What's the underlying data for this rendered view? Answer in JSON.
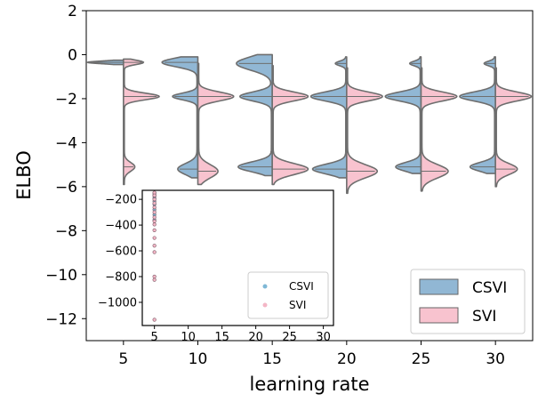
{
  "chart_data": [
    {
      "type": "violin",
      "xlabel": "learning rate",
      "ylabel": "ELBO",
      "categories": [
        "5",
        "10",
        "15",
        "20",
        "25",
        "30"
      ],
      "ylim": [
        -13,
        2
      ],
      "yticks": [
        2,
        0,
        -2,
        -4,
        -6,
        -8,
        -10,
        -12
      ],
      "yticklabels": [
        "2",
        "0",
        "−2",
        "−4",
        "−6",
        "−8",
        "−10",
        "−12"
      ],
      "split": true,
      "grid": false,
      "legend_position": "bottom-right",
      "series": [
        {
          "name": "CSVI",
          "color": "#91b7d4",
          "distributions": [
            {
              "modes": [
                {
                  "center": -0.35,
                  "spread": 0.06,
                  "weight": 1.0
                }
              ],
              "min": -0.45,
              "max": -0.25
            },
            {
              "modes": [
                {
                  "center": -0.35,
                  "spread": 0.2,
                  "weight": 1.0
                },
                {
                  "center": -1.9,
                  "spread": 0.15,
                  "weight": 0.7
                },
                {
                  "center": -5.2,
                  "spread": 0.25,
                  "weight": 0.55
                }
              ],
              "min": -5.6,
              "max": -0.1
            },
            {
              "modes": [
                {
                  "center": -0.4,
                  "spread": 0.3,
                  "weight": 1.0
                },
                {
                  "center": -1.9,
                  "spread": 0.2,
                  "weight": 0.9
                },
                {
                  "center": -5.1,
                  "spread": 0.22,
                  "weight": 0.95
                }
              ],
              "min": -5.5,
              "max": 0.0
            },
            {
              "modes": [
                {
                  "center": -0.4,
                  "spread": 0.1,
                  "weight": 0.3
                },
                {
                  "center": -1.9,
                  "spread": 0.2,
                  "weight": 1.0
                },
                {
                  "center": -5.2,
                  "spread": 0.22,
                  "weight": 0.95
                }
              ],
              "min": -5.6,
              "max": -0.1
            },
            {
              "modes": [
                {
                  "center": -0.4,
                  "spread": 0.1,
                  "weight": 0.3
                },
                {
                  "center": -1.9,
                  "spread": 0.2,
                  "weight": 1.0
                },
                {
                  "center": -5.1,
                  "spread": 0.2,
                  "weight": 0.7
                }
              ],
              "min": -5.4,
              "max": -0.1
            },
            {
              "modes": [
                {
                  "center": -0.4,
                  "spread": 0.1,
                  "weight": 0.3
                },
                {
                  "center": -1.9,
                  "spread": 0.2,
                  "weight": 1.0
                },
                {
                  "center": -5.1,
                  "spread": 0.2,
                  "weight": 0.7
                }
              ],
              "min": -5.4,
              "max": -0.1
            }
          ]
        },
        {
          "name": "SVI",
          "color": "#f8c3cf",
          "distributions": [
            {
              "modes": [
                {
                  "center": -0.35,
                  "spread": 0.1,
                  "weight": 0.55
                },
                {
                  "center": -1.9,
                  "spread": 0.15,
                  "weight": 1.0
                },
                {
                  "center": -5.1,
                  "spread": 0.2,
                  "weight": 0.3
                }
              ],
              "min": -5.9,
              "max": -0.2
            },
            {
              "modes": [
                {
                  "center": -1.9,
                  "spread": 0.2,
                  "weight": 1.0
                },
                {
                  "center": -5.3,
                  "spread": 0.3,
                  "weight": 0.55
                }
              ],
              "min": -5.9,
              "max": -0.4
            },
            {
              "modes": [
                {
                  "center": -1.9,
                  "spread": 0.2,
                  "weight": 1.0
                },
                {
                  "center": -5.2,
                  "spread": 0.25,
                  "weight": 1.0
                }
              ],
              "min": -5.9,
              "max": -0.5
            },
            {
              "modes": [
                {
                  "center": -1.9,
                  "spread": 0.2,
                  "weight": 1.0
                },
                {
                  "center": -5.3,
                  "spread": 0.3,
                  "weight": 0.85
                }
              ],
              "min": -6.3,
              "max": -0.6
            },
            {
              "modes": [
                {
                  "center": -1.9,
                  "spread": 0.2,
                  "weight": 1.0
                },
                {
                  "center": -5.3,
                  "spread": 0.3,
                  "weight": 0.75
                }
              ],
              "min": -6.2,
              "max": -0.6
            },
            {
              "modes": [
                {
                  "center": -1.9,
                  "spread": 0.2,
                  "weight": 1.0
                },
                {
                  "center": -5.2,
                  "spread": 0.25,
                  "weight": 0.6
                }
              ],
              "min": -6.0,
              "max": -0.6
            }
          ]
        }
      ]
    },
    {
      "type": "scatter",
      "inset": true,
      "xlim": [
        3.2,
        31.5
      ],
      "ylim": [
        -1180,
        -130
      ],
      "xticks": [
        5,
        10,
        15,
        20,
        25,
        30
      ],
      "xticklabels": [
        "5",
        "10",
        "15",
        "20",
        "25",
        "30"
      ],
      "yticks": [
        -200,
        -400,
        -600,
        -800,
        -1000
      ],
      "yticklabels": [
        "−200",
        "−400",
        "−600",
        "−800",
        "−1000"
      ],
      "legend_position": "bottom-right",
      "series": [
        {
          "name": "CSVI",
          "color": "#7fb8d6",
          "points": [
            [
              5,
              -150
            ],
            [
              5,
              -160
            ],
            [
              5,
              -175
            ],
            [
              5,
              -190
            ],
            [
              5,
              -215
            ],
            [
              5,
              -240
            ],
            [
              5,
              -280
            ],
            [
              5,
              -320
            ],
            [
              5,
              -360
            ]
          ]
        },
        {
          "name": "SVI",
          "color": "#f4b6c6",
          "points": [
            [
              5,
              -148
            ],
            [
              5,
              -170
            ],
            [
              5,
              -200
            ],
            [
              5,
              -230
            ],
            [
              5,
              -262
            ],
            [
              5,
              -300
            ],
            [
              5,
              -340
            ],
            [
              5,
              -370
            ],
            [
              5,
              -395
            ],
            [
              5,
              -440
            ],
            [
              5,
              -500
            ],
            [
              5,
              -560
            ],
            [
              5,
              -610
            ],
            [
              5,
              -800
            ],
            [
              5,
              -825
            ],
            [
              5,
              -1135
            ]
          ]
        }
      ]
    }
  ]
}
